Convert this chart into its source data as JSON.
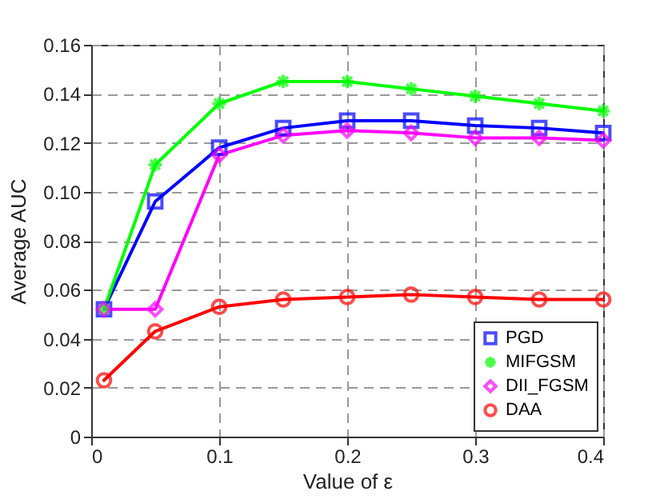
{
  "chart_data": {
    "type": "line",
    "xlabel": "Value of ε",
    "ylabel": "Average AUC",
    "x": [
      0.01,
      0.05,
      0.1,
      0.15,
      0.2,
      0.25,
      0.3,
      0.35,
      0.4
    ],
    "series": [
      {
        "name": "PGD",
        "color": "#0000ff",
        "marker": "square",
        "values": [
          0.052,
          0.096,
          0.118,
          0.126,
          0.129,
          0.129,
          0.127,
          0.126,
          0.124
        ]
      },
      {
        "name": "MIFGSM",
        "color": "#00ff00",
        "marker": "cross",
        "values": [
          0.052,
          0.111,
          0.136,
          0.145,
          0.145,
          0.142,
          0.139,
          0.136,
          0.133
        ]
      },
      {
        "name": "DII_FGSM",
        "color": "#ff00ff",
        "marker": "diamond",
        "values": [
          0.052,
          0.052,
          0.115,
          0.123,
          0.125,
          0.124,
          0.122,
          0.122,
          0.121
        ]
      },
      {
        "name": "DAA",
        "color": "#ff0000",
        "marker": "circle",
        "values": [
          0.023,
          0.043,
          0.053,
          0.056,
          0.057,
          0.058,
          0.057,
          0.056,
          0.056
        ]
      }
    ],
    "xlim": [
      0,
      0.4
    ],
    "xticks": [
      0,
      0.1,
      0.2,
      0.3,
      0.4
    ],
    "ylim": [
      0,
      0.16
    ],
    "yticks": [
      0,
      0.02,
      0.04,
      0.06,
      0.08,
      {
        "value": 0.1,
        "label": "0.10"
      },
      0.12,
      0.14,
      0.16
    ],
    "grid": true,
    "legend": "bottom right",
    "line_style": "solid"
  }
}
